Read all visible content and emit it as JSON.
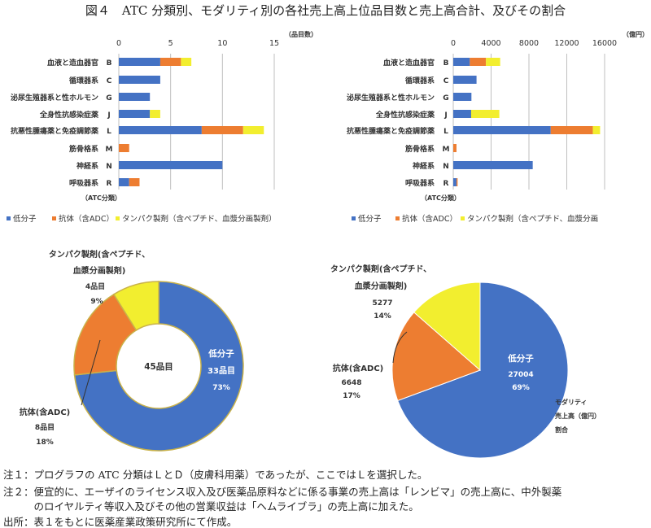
{
  "title": "図４　ATC 分類別、モダリティ別の各社売上高上位品目数と売上高合計、及びその割合",
  "colors": {
    "small_molecule": "#4472c4",
    "antibody": "#ed7d31",
    "protein": "#f2ee2f",
    "grid": "#bfbfbf"
  },
  "chart_data": [
    {
      "type": "bar",
      "orientation": "horizontal",
      "stacked": true,
      "unit_label": "（品目数）",
      "category_axis_label": "（ATC分類）",
      "categories": [
        "血液と造血器官",
        "循環器系",
        "泌尿生殖器系と性ホルモン",
        "全身性抗感染症薬",
        "抗悪性腫瘍薬と免疫調節薬",
        "筋骨格系",
        "神経系",
        "呼吸器系"
      ],
      "codes": [
        "B",
        "C",
        "G",
        "J",
        "L",
        "M",
        "N",
        "R"
      ],
      "xlim": [
        0,
        15
      ],
      "ticks": [
        "0",
        "5",
        "10",
        "15"
      ],
      "tick_values": [
        0,
        5,
        10,
        15
      ],
      "grid": true,
      "legend_position": "bottom",
      "series": [
        {
          "name": "低分子",
          "values": [
            4,
            4,
            3,
            3,
            8,
            0,
            10,
            1
          ]
        },
        {
          "name": "抗体（含ADC）",
          "values": [
            2,
            0,
            0,
            0,
            4,
            1,
            0,
            1
          ]
        },
        {
          "name": "タンパク製剤（含ペプチド、血漿分画製剤）",
          "values": [
            1,
            0,
            0,
            1,
            2,
            0,
            0,
            0
          ]
        }
      ]
    },
    {
      "type": "bar",
      "orientation": "horizontal",
      "stacked": true,
      "unit_label": "（億円）",
      "category_axis_label": "（ATC分類）",
      "categories": [
        "血液と造血器官",
        "循環器系",
        "泌尿生殖器系と性ホルモン",
        "全身性抗感染症薬",
        "抗悪性腫瘍薬と免疫調節薬",
        "筋骨格系",
        "神経系",
        "呼吸器系"
      ],
      "codes": [
        "B",
        "C",
        "G",
        "J",
        "L",
        "M",
        "N",
        "R"
      ],
      "xlim": [
        0,
        16000
      ],
      "ticks": [
        "0",
        "4000",
        "8000",
        "12000",
        "16000"
      ],
      "tick_values": [
        0,
        4000,
        8000,
        12000,
        16000
      ],
      "grid": true,
      "legend_position": "bottom",
      "series": [
        {
          "name": "低分子",
          "values": [
            1750,
            2460,
            1920,
            1890,
            10300,
            0,
            8400,
            340
          ]
        },
        {
          "name": "抗体（含ADC）",
          "values": [
            1700,
            0,
            0,
            0,
            4450,
            340,
            0,
            120
          ]
        },
        {
          "name": "タンパク製剤（含ペプチド、血漿分画",
          "values": [
            1510,
            0,
            0,
            2980,
            770,
            0,
            0,
            0
          ]
        }
      ]
    },
    {
      "type": "pie",
      "donut": true,
      "center_label": "45品目",
      "slices": [
        {
          "name": "低分子",
          "value": 33,
          "value_label": "33品目",
          "percent": "73%"
        },
        {
          "name": "抗体(含ADC)",
          "value": 8,
          "value_label": "8品目",
          "percent": "18%"
        },
        {
          "name_lines": [
            "タンパク製剤(含ペプチド、",
            "血漿分画製剤)"
          ],
          "value": 4,
          "value_label": "4品目",
          "percent": "9%"
        }
      ]
    },
    {
      "type": "pie",
      "donut": false,
      "caption_lines": [
        "モダリティ",
        "売上高（億円）",
        "割合"
      ],
      "slices": [
        {
          "name": "低分子",
          "value": 27004,
          "value_label": "27004",
          "percent": "69%"
        },
        {
          "name": "抗体(含ADC)",
          "value": 6648,
          "value_label": "6648",
          "percent": "17%"
        },
        {
          "name_lines": [
            "タンパク製剤(含ペプチド、",
            "血漿分画製剤)"
          ],
          "value": 5277,
          "value_label": "5277",
          "percent": "14%"
        }
      ]
    }
  ],
  "notes": [
    "注１：プログラフの ATC 分類はＬとＤ（皮膚科用薬）であったが、ここではＬを選択した。",
    "注２：便宜的に、エーザイのライセンス収入及び医薬品原料などに係る事業の売上高は「レンビマ」の売上高に、中外製薬",
    "　　　のロイヤルティ等収入及びその他の営業収益は「ヘムライブラ」の売上高に加えた。",
    "出所：表１をもとに医薬産業政策研究所にて作成。"
  ]
}
